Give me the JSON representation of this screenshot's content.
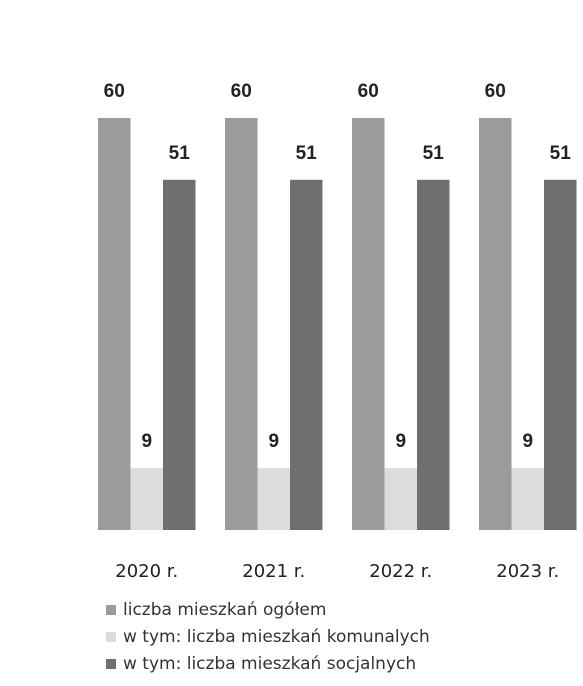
{
  "chart_data": {
    "type": "bar",
    "categories": [
      "2020 r.",
      "2021 r.",
      "2022 r.",
      "2023 r."
    ],
    "series": [
      {
        "name": "liczba mieszkań ogółem",
        "color": "#9b9b9b",
        "values": [
          60,
          60,
          60,
          60
        ]
      },
      {
        "name": "w tym: liczba mieszkań komunalych",
        "color": "#dcdcdc",
        "values": [
          9,
          9,
          9,
          9
        ]
      },
      {
        "name": "w tym: liczba mieszkań socjalnych",
        "color": "#6f6f6f",
        "values": [
          51,
          51,
          51,
          51
        ]
      }
    ]
  }
}
